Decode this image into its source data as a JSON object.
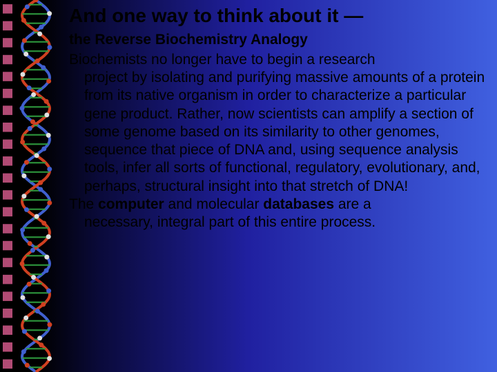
{
  "title": "And one way to think about it —",
  "subtitle": "the Reverse Biochemistry Analogy",
  "para1_line1": "Biochemists no longer have to begin a research",
  "para1_rest": "project by isolating and purifying massive amounts of a protein from its native organism in order to characterize a particular gene product.  Rather, now scientists can amplify a section of some genome based on its similarity to other genomes, sequence that piece of DNA and, using sequence analysis tools, infer all sorts of functional, regulatory, evolutionary, and, perhaps, structural insight into that stretch of DNA!",
  "para2_pre": "The ",
  "para2_b1": "computer",
  "para2_mid": " and molecular ",
  "para2_b2": "databases",
  "para2_post": " are a",
  "para2_rest": "necessary, integral part of this entire process.",
  "side": {
    "bullet_rows": 22,
    "bullet_color": "#d05888",
    "helix_backbone1": "#4060d0",
    "helix_backbone2": "#d04020",
    "helix_base": "#30a040"
  }
}
